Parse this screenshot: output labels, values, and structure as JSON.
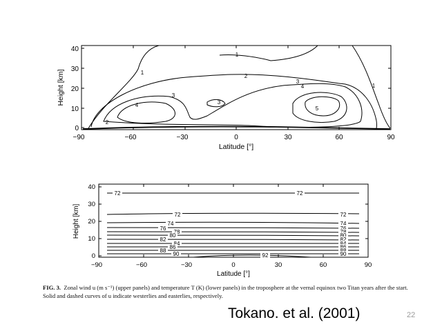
{
  "slide": {
    "citation": "Tokano. et al. (2001)",
    "page_number": "22",
    "caption": {
      "fig_label": "FIG. 3.",
      "text_line1": "Zonal wind u (m s⁻¹) (upper panels) and temperature T (K) (lower panels) in the troposphere at the vernal equinox two Titan years after the start.",
      "text_line2": "Solid and dashed curves of u indicate westerlies and easterlies, respectively."
    }
  },
  "chart_data": [
    {
      "type": "contour",
      "variable": "zonal wind u",
      "xlabel": "Latitude [°]",
      "ylabel": "Height [km]",
      "xlim": [
        -90,
        90
      ],
      "ylim": [
        0,
        42
      ],
      "xticks": [
        "−90",
        "−60",
        "−30",
        "0",
        "30",
        "60",
        "90"
      ],
      "yticks": [
        "0",
        "10",
        "20",
        "30",
        "40"
      ],
      "contours": [
        {
          "level": "1",
          "label_at": [
            -2,
            37
          ]
        },
        {
          "level": "1",
          "label_at": [
            -78,
            27
          ]
        },
        {
          "level": "1",
          "label_at": [
            82,
            22
          ]
        },
        {
          "level": "2",
          "label_at": [
            12,
            26
          ]
        },
        {
          "level": "2",
          "label_at": [
            -82,
            3
          ]
        },
        {
          "level": "3",
          "label_at": [
            -40,
            15
          ]
        },
        {
          "level": "3",
          "label_at": [
            0,
            12
          ]
        },
        {
          "level": "3",
          "label_at": [
            40,
            23
          ]
        },
        {
          "level": "4",
          "label_at": [
            -62,
            10
          ]
        },
        {
          "level": "4",
          "label_at": [
            46,
            14
          ]
        },
        {
          "level": "5",
          "label_at": [
            58,
            8
          ]
        }
      ]
    },
    {
      "type": "contour",
      "variable": "temperature T",
      "xlabel": "Latitude [°]",
      "ylabel": "Height [km]",
      "xlim": [
        -90,
        90
      ],
      "ylim": [
        0,
        42
      ],
      "xticks": [
        "−90",
        "−60",
        "−30",
        "0",
        "30",
        "60",
        "90"
      ],
      "yticks": [
        "0",
        "10",
        "20",
        "30",
        "40"
      ],
      "isotherms": [
        {
          "level": "72",
          "height_km": 35.5,
          "label_lats": [
            -78,
            45
          ]
        },
        {
          "level": "72",
          "height_km": 23.5,
          "label_lats": [
            -38,
            77
          ]
        },
        {
          "level": "74",
          "height_km": 18.5,
          "label_lats": [
            -43,
            77
          ]
        },
        {
          "level": "76",
          "height_km": 15.5,
          "label_lats": [
            -47,
            77
          ]
        },
        {
          "level": "78",
          "height_km": 13.5,
          "label_lats": [
            -44,
            77
          ]
        },
        {
          "level": "80",
          "height_km": 11.5,
          "label_lats": [
            -47,
            77
          ]
        },
        {
          "level": "82",
          "height_km": 9.5,
          "label_lats": [
            -52,
            77
          ]
        },
        {
          "level": "84",
          "height_km": 7.5,
          "label_lats": [
            -42,
            77
          ]
        },
        {
          "level": "86",
          "height_km": 5.5,
          "label_lats": [
            -45,
            77
          ]
        },
        {
          "level": "88",
          "height_km": 3.8,
          "label_lats": [
            -55,
            77
          ]
        },
        {
          "level": "90",
          "height_km": 1.8,
          "label_lats": [
            -43,
            77
          ]
        },
        {
          "level": "92",
          "height_km": 0.6,
          "label_lats": [
            28
          ]
        }
      ]
    }
  ]
}
